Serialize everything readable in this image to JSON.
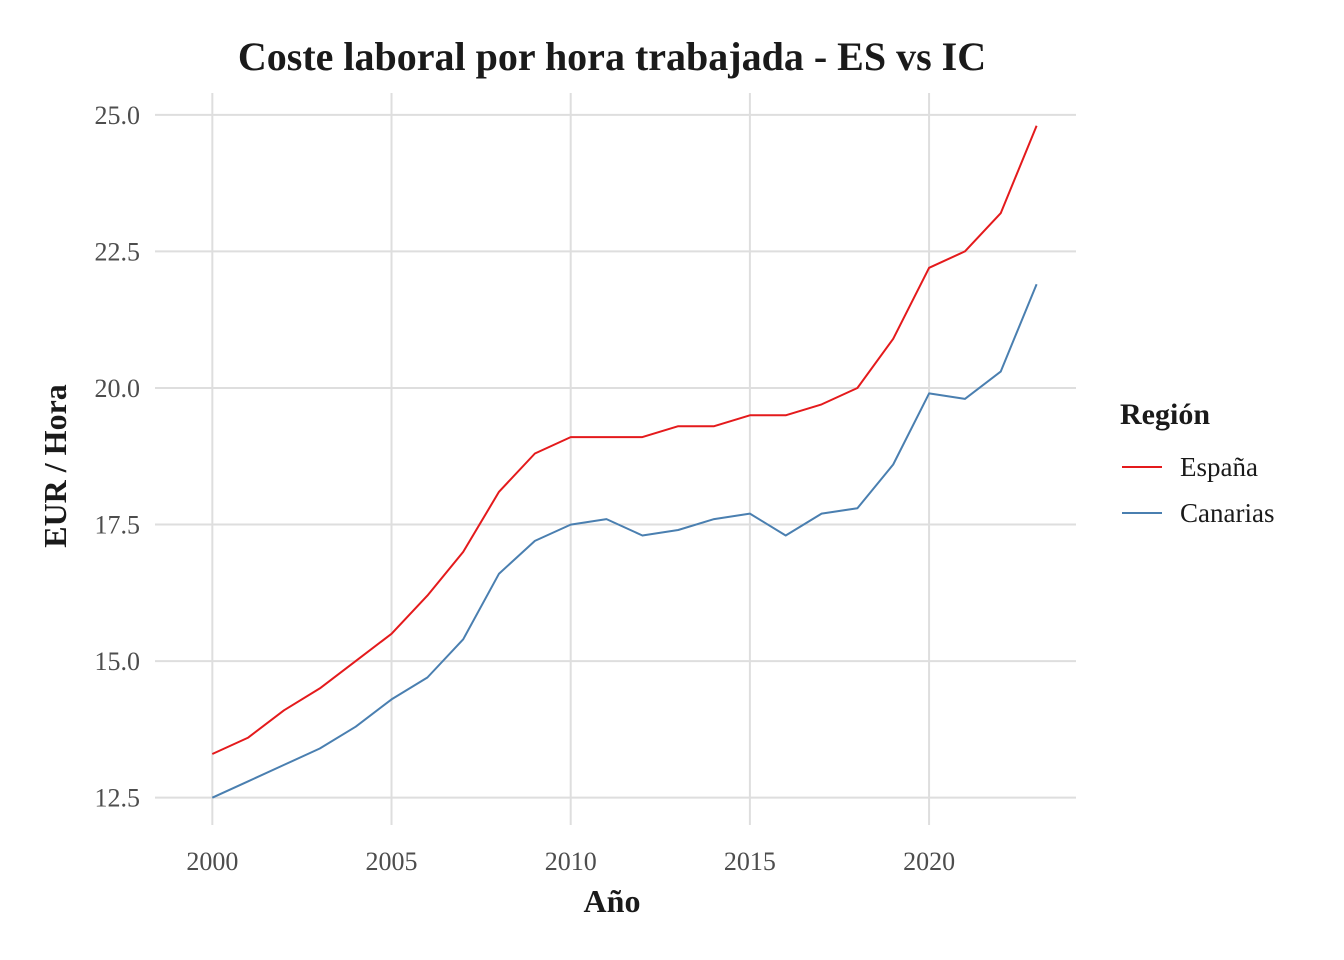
{
  "chart_data": {
    "type": "line",
    "title": "Coste laboral por hora trabajada - ES vs IC",
    "xlabel": "Año",
    "ylabel": "EUR / Hora",
    "x": [
      2000,
      2001,
      2002,
      2003,
      2004,
      2005,
      2006,
      2007,
      2008,
      2009,
      2010,
      2011,
      2012,
      2013,
      2014,
      2015,
      2016,
      2017,
      2018,
      2019,
      2020,
      2021,
      2022,
      2023
    ],
    "xlim": [
      1998.4,
      2024.1
    ],
    "ylim": [
      12.0,
      25.4
    ],
    "x_ticks": [
      2000,
      2005,
      2010,
      2015,
      2020
    ],
    "x_tick_labels": [
      "2000",
      "2005",
      "2010",
      "2015",
      "2020"
    ],
    "y_ticks": [
      12.5,
      15.0,
      17.5,
      20.0,
      22.5,
      25.0
    ],
    "y_tick_labels": [
      "12.5",
      "15.0",
      "17.5",
      "20.0",
      "22.5",
      "25.0"
    ],
    "grid": true,
    "legend": {
      "title": "Región",
      "position": "right"
    },
    "series": [
      {
        "name": "España",
        "color": "#e41a1c",
        "values": [
          13.3,
          13.6,
          14.1,
          14.5,
          15.0,
          15.5,
          16.2,
          17.0,
          18.1,
          18.8,
          19.1,
          19.1,
          19.1,
          19.3,
          19.3,
          19.5,
          19.5,
          19.7,
          20.0,
          20.9,
          22.2,
          22.5,
          23.2,
          24.8
        ]
      },
      {
        "name": "Canarias",
        "color": "#4a7fb0",
        "values": [
          12.5,
          12.8,
          13.1,
          13.4,
          13.8,
          14.3,
          14.7,
          15.4,
          16.6,
          17.2,
          17.5,
          17.6,
          17.3,
          17.4,
          17.6,
          17.7,
          17.3,
          17.7,
          17.8,
          18.6,
          19.9,
          19.8,
          20.3,
          21.9
        ]
      }
    ]
  }
}
